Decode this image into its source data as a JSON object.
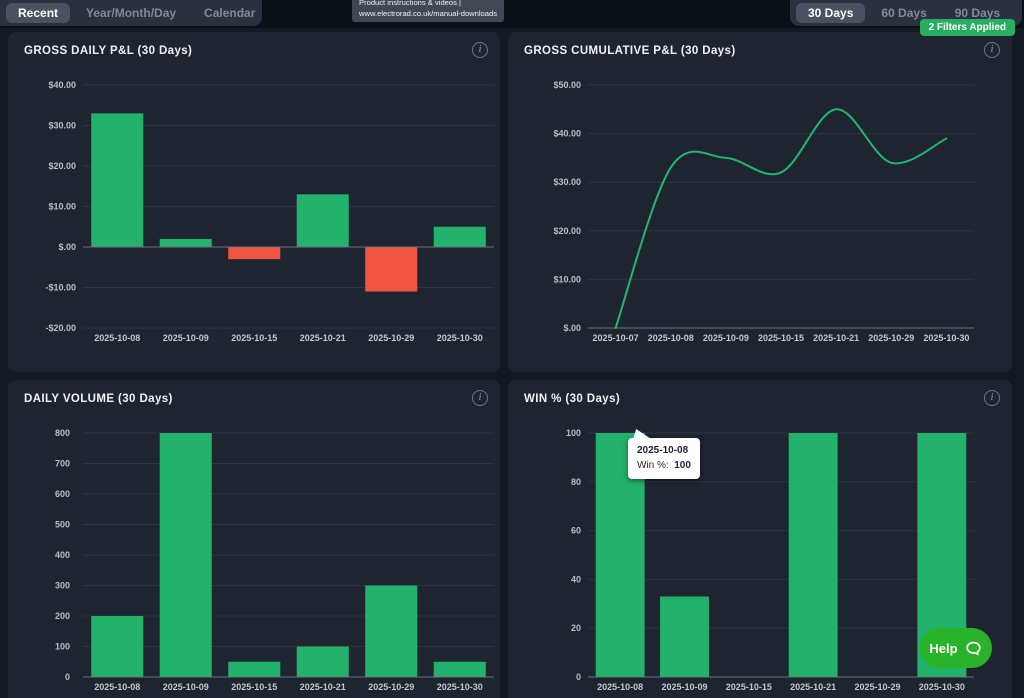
{
  "topbar": {
    "view_tabs": [
      {
        "label": "Recent",
        "active": true
      },
      {
        "label": "Year/Month/Day",
        "active": false
      },
      {
        "label": "Calendar",
        "active": false
      }
    ],
    "range_tabs": [
      {
        "label": "30 Days",
        "active": true
      },
      {
        "label": "60 Days",
        "active": false
      },
      {
        "label": "90 Days",
        "active": false
      }
    ],
    "hover_tooltip": {
      "line1": "Product instructions & videos |",
      "line2": "www.electrorad.co.uk/manual-downloads"
    },
    "filters_badge": "2 Filters Applied"
  },
  "colors": {
    "bar_positive": "#22b26b",
    "bar_negative": "#f05443",
    "line": "#1fb873",
    "grid": "#2d3442",
    "axis_line": "#6b7380",
    "ytick_text": "#b9c0ca",
    "xtick_text": "#c3c9d3"
  },
  "win_tooltip": {
    "date": "2025-10-08",
    "label": "Win %:",
    "value": "100"
  },
  "help_button": {
    "label": "Help"
  },
  "chart_data": [
    {
      "id": "daily_pnl",
      "type": "bar",
      "title": "GROSS DAILY P&L (30 Days)",
      "categories": [
        "2025-10-08",
        "2025-10-09",
        "2025-10-15",
        "2025-10-21",
        "2025-10-29",
        "2025-10-30"
      ],
      "values": [
        33,
        2,
        -3,
        13,
        -11,
        5
      ],
      "ylim": [
        -20,
        40
      ],
      "yticks": [
        {
          "v": 40,
          "label": "$40.00"
        },
        {
          "v": 30,
          "label": "$30.00"
        },
        {
          "v": 20,
          "label": "$20.00"
        },
        {
          "v": 10,
          "label": "$10.00"
        },
        {
          "v": 0,
          "label": "$.00"
        },
        {
          "v": -10,
          "label": "-$10.00"
        },
        {
          "v": -20,
          "label": "-$20.00"
        }
      ]
    },
    {
      "id": "cum_pnl",
      "type": "line",
      "title": "GROSS CUMULATIVE P&L (30 Days)",
      "categories": [
        "2025-10-07",
        "2025-10-08",
        "2025-10-09",
        "2025-10-15",
        "2025-10-21",
        "2025-10-29",
        "2025-10-30"
      ],
      "values": [
        0,
        33,
        35,
        32,
        45,
        34,
        39
      ],
      "ylim": [
        0,
        50
      ],
      "yticks": [
        {
          "v": 50,
          "label": "$50.00"
        },
        {
          "v": 40,
          "label": "$40.00"
        },
        {
          "v": 30,
          "label": "$30.00"
        },
        {
          "v": 20,
          "label": "$20.00"
        },
        {
          "v": 10,
          "label": "$10.00"
        },
        {
          "v": 0,
          "label": "$.00"
        }
      ]
    },
    {
      "id": "volume",
      "type": "bar",
      "title": "DAILY VOLUME (30 Days)",
      "categories": [
        "2025-10-08",
        "2025-10-09",
        "2025-10-15",
        "2025-10-21",
        "2025-10-29",
        "2025-10-30"
      ],
      "values": [
        200,
        800,
        50,
        100,
        300,
        50
      ],
      "ylim": [
        0,
        800
      ],
      "yticks": [
        {
          "v": 800,
          "label": "800"
        },
        {
          "v": 700,
          "label": "700"
        },
        {
          "v": 600,
          "label": "600"
        },
        {
          "v": 500,
          "label": "500"
        },
        {
          "v": 400,
          "label": "400"
        },
        {
          "v": 300,
          "label": "300"
        },
        {
          "v": 200,
          "label": "200"
        },
        {
          "v": 100,
          "label": "100"
        },
        {
          "v": 0,
          "label": "0"
        }
      ]
    },
    {
      "id": "winpct",
      "type": "bar",
      "title": "WIN % (30 Days)",
      "categories": [
        "2025-10-08",
        "2025-10-09",
        "2025-10-15",
        "2025-10-21",
        "2025-10-29",
        "2025-10-30"
      ],
      "values": [
        100,
        33,
        0,
        100,
        0,
        100
      ],
      "ylim": [
        0,
        100
      ],
      "yticks": [
        {
          "v": 100,
          "label": "100"
        },
        {
          "v": 80,
          "label": "80"
        },
        {
          "v": 60,
          "label": "60"
        },
        {
          "v": 40,
          "label": "40"
        },
        {
          "v": 20,
          "label": "20"
        },
        {
          "v": 0,
          "label": "0"
        }
      ]
    }
  ]
}
